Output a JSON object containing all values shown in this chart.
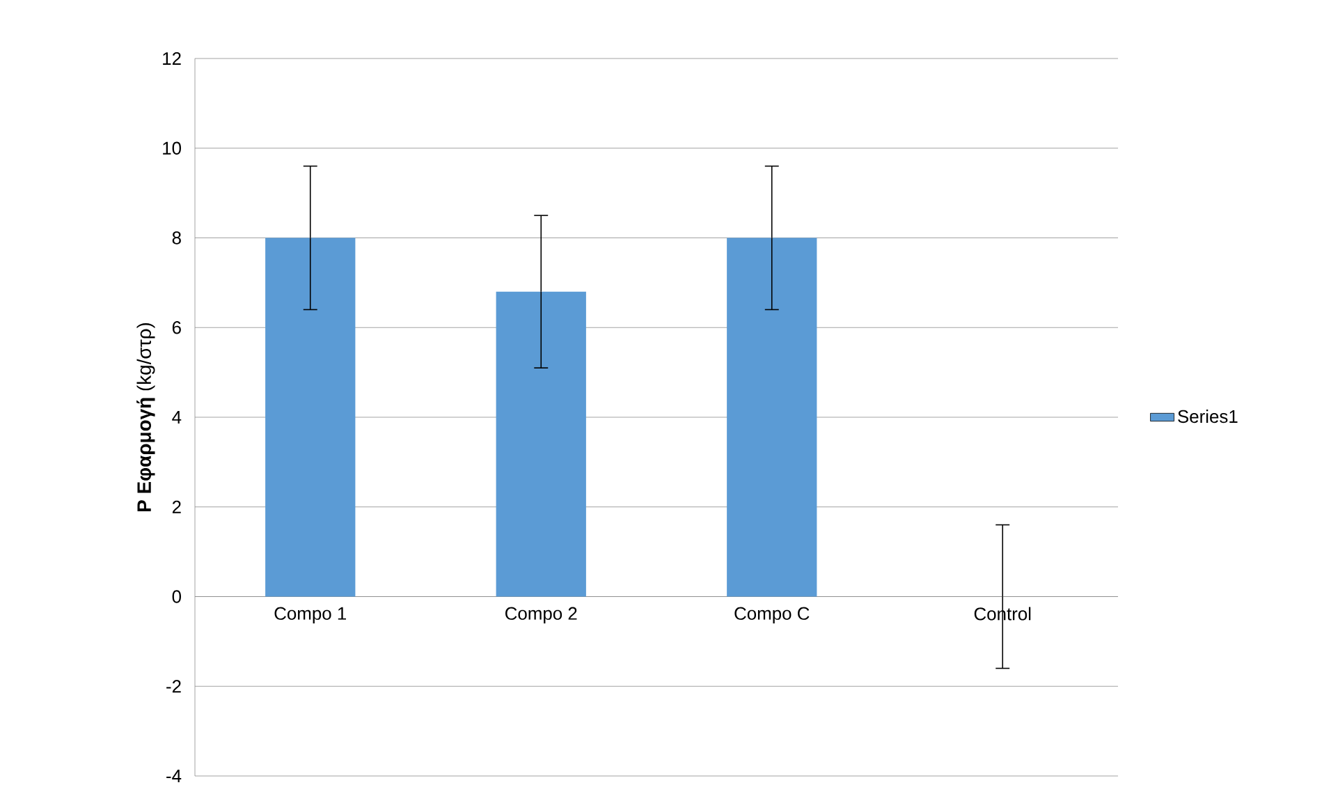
{
  "chart_data": {
    "type": "bar",
    "ylabel": "**P Εφαρμογή**  (kg/στρ)",
    "categories": [
      "Compo 1",
      "Compo 2",
      "Compo C",
      "Control"
    ],
    "series": [
      {
        "name": "Series1",
        "color": "#5b9bd5",
        "values": [
          8,
          6.8,
          8,
          0
        ],
        "errors": [
          1.6,
          1.7,
          1.6,
          1.6
        ]
      }
    ],
    "ylim": [
      -4,
      12
    ],
    "yticks": [
      -4,
      -2,
      0,
      2,
      4,
      6,
      8,
      10,
      12
    ],
    "grid": "y",
    "legend": "right"
  }
}
